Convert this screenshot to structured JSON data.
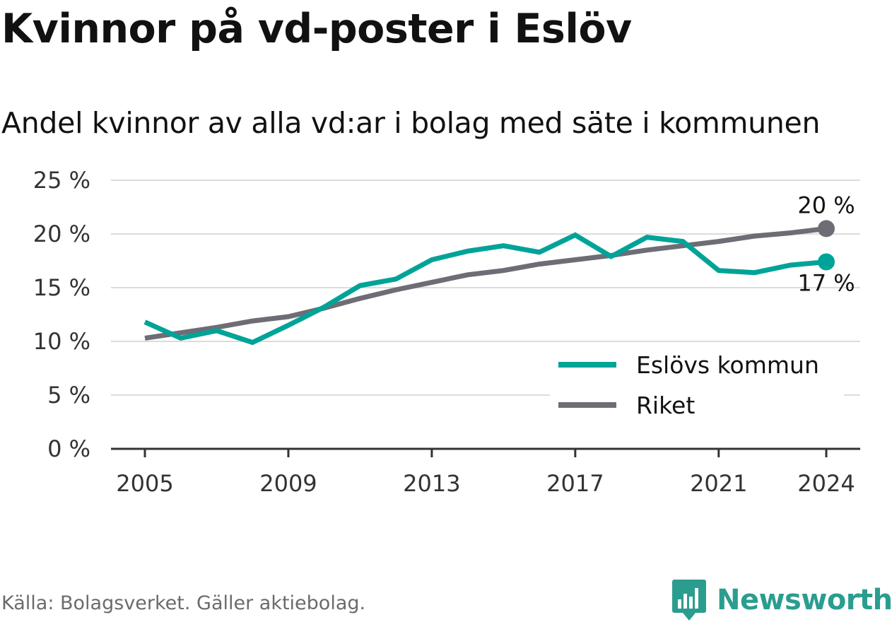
{
  "title": "Kvinnor på vd-poster i Eslöv",
  "subtitle": "Andel kvinnor av alla vd:ar i bolag med säte i kommunen",
  "source": "Källa: Bolagsverket. Gäller aktiebolag.",
  "brand": "Newsworthy",
  "icon": "newsworthy-logo-icon",
  "chart_data": {
    "type": "line",
    "x": [
      2005,
      2006,
      2007,
      2008,
      2009,
      2010,
      2011,
      2012,
      2013,
      2014,
      2015,
      2016,
      2017,
      2018,
      2019,
      2020,
      2021,
      2022,
      2023,
      2024
    ],
    "x_ticks": [
      2005,
      2009,
      2013,
      2017,
      2021,
      2024
    ],
    "x_tick_labels": [
      "2005",
      "2009",
      "2013",
      "2017",
      "2021",
      "2024"
    ],
    "y_ticks": [
      0,
      5,
      10,
      15,
      20,
      25
    ],
    "y_tick_labels": [
      "0 %",
      "5 %",
      "10 %",
      "15 %",
      "20 %",
      "25 %"
    ],
    "ylim": [
      0,
      25
    ],
    "xlim": [
      2005,
      2024
    ],
    "grid": "horizontal",
    "legend_position": "bottom-right",
    "series": [
      {
        "name": "Eslövs kommun",
        "color": "#00a398",
        "values": [
          11.8,
          10.3,
          11.0,
          9.9,
          11.5,
          13.2,
          15.2,
          15.8,
          17.6,
          18.4,
          18.9,
          18.3,
          19.9,
          17.9,
          19.7,
          19.3,
          16.6,
          16.4,
          17.1,
          17.4
        ],
        "end_label": "17 %"
      },
      {
        "name": "Riket",
        "color": "#6e6c75",
        "values": [
          10.3,
          10.8,
          11.3,
          11.9,
          12.3,
          13.1,
          14.0,
          14.8,
          15.5,
          16.2,
          16.6,
          17.2,
          17.6,
          18.0,
          18.5,
          18.9,
          19.3,
          19.8,
          20.1,
          20.5
        ],
        "end_label": "20 %"
      }
    ]
  }
}
